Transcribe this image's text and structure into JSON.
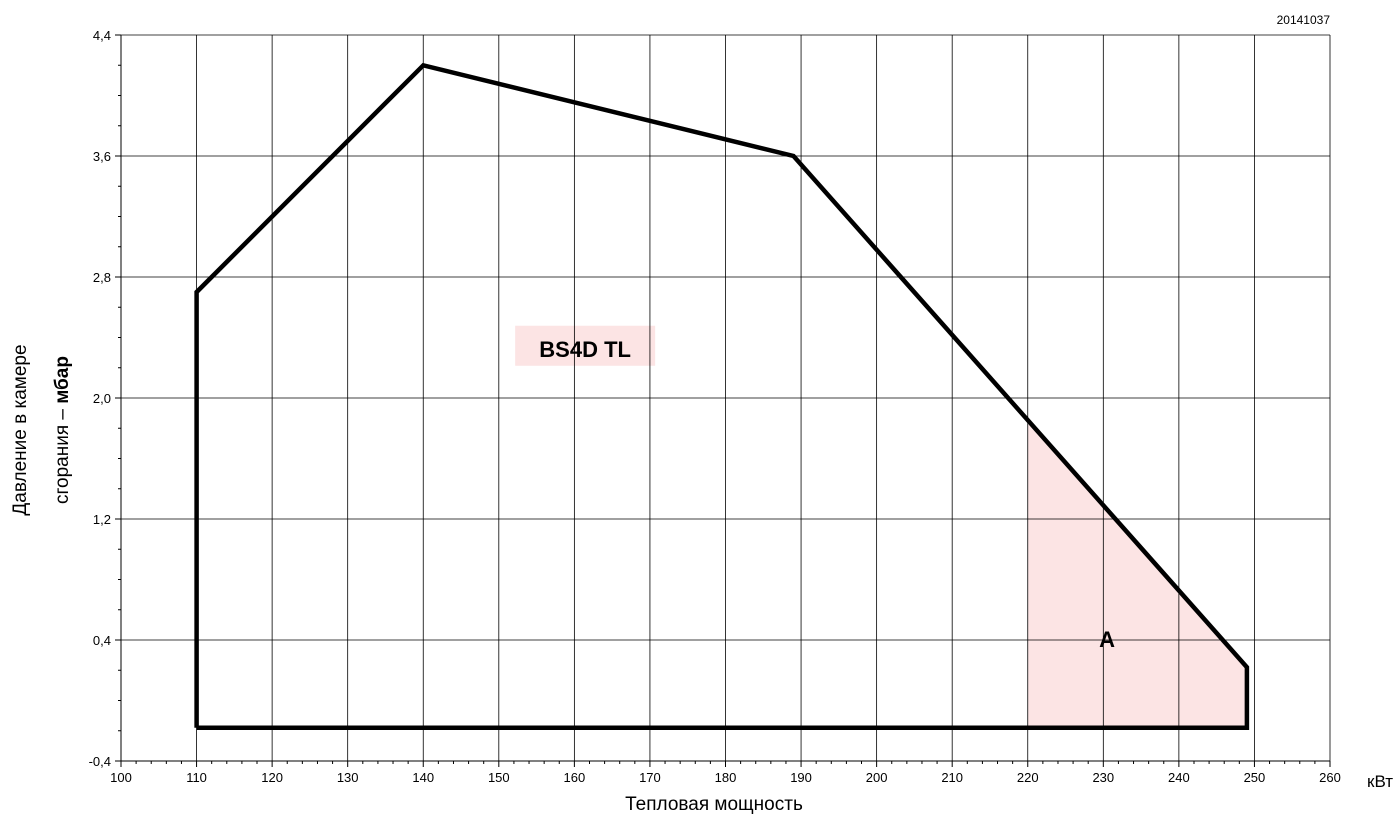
{
  "chart_data": {
    "type": "line",
    "title": "",
    "drawing_code": "20141037",
    "xlabel": "Тепловая мощность",
    "x_unit": "кВт",
    "ylabel_line1": "Давление в камере",
    "ylabel_line2_prefix": "сгорания – ",
    "ylabel_line2_unit": "мбар",
    "xlim": [
      100,
      260
    ],
    "ylim": [
      -0.4,
      4.4
    ],
    "x_ticks": [
      100,
      110,
      120,
      130,
      140,
      150,
      160,
      170,
      180,
      190,
      200,
      210,
      220,
      230,
      240,
      250,
      260
    ],
    "x_tick_labels": [
      "100",
      "110",
      "120",
      "130",
      "140",
      "150",
      "160",
      "170",
      "180",
      "190",
      "200",
      "210",
      "220",
      "230",
      "240",
      "250",
      "260"
    ],
    "y_ticks": [
      -0.4,
      0.4,
      1.2,
      2.0,
      2.8,
      3.6,
      4.4
    ],
    "y_tick_labels": [
      "-0,4",
      "0,4",
      "1,2",
      "2,0",
      "2,8",
      "3,6",
      "4,4"
    ],
    "grid": true,
    "series": [
      {
        "name": "BS4D TL",
        "color": "#000000",
        "x": [
          110,
          110,
          140,
          189,
          249,
          249,
          110
        ],
        "y": [
          -0.18,
          2.7,
          4.2,
          3.6,
          0.22,
          -0.18,
          -0.18
        ]
      }
    ],
    "annotations": [
      {
        "text": "BS4D TL",
        "x": 160.5,
        "y": 2.2,
        "highlight_color": "#fce4e4"
      },
      {
        "text": "A",
        "x": 230.5,
        "y": 0.4
      }
    ],
    "shaded_region": {
      "label": "A",
      "color": "#fce4e4",
      "x": [
        220,
        220,
        249,
        249
      ],
      "y": [
        -0.18,
        1.83,
        0.22,
        -0.18
      ]
    }
  }
}
